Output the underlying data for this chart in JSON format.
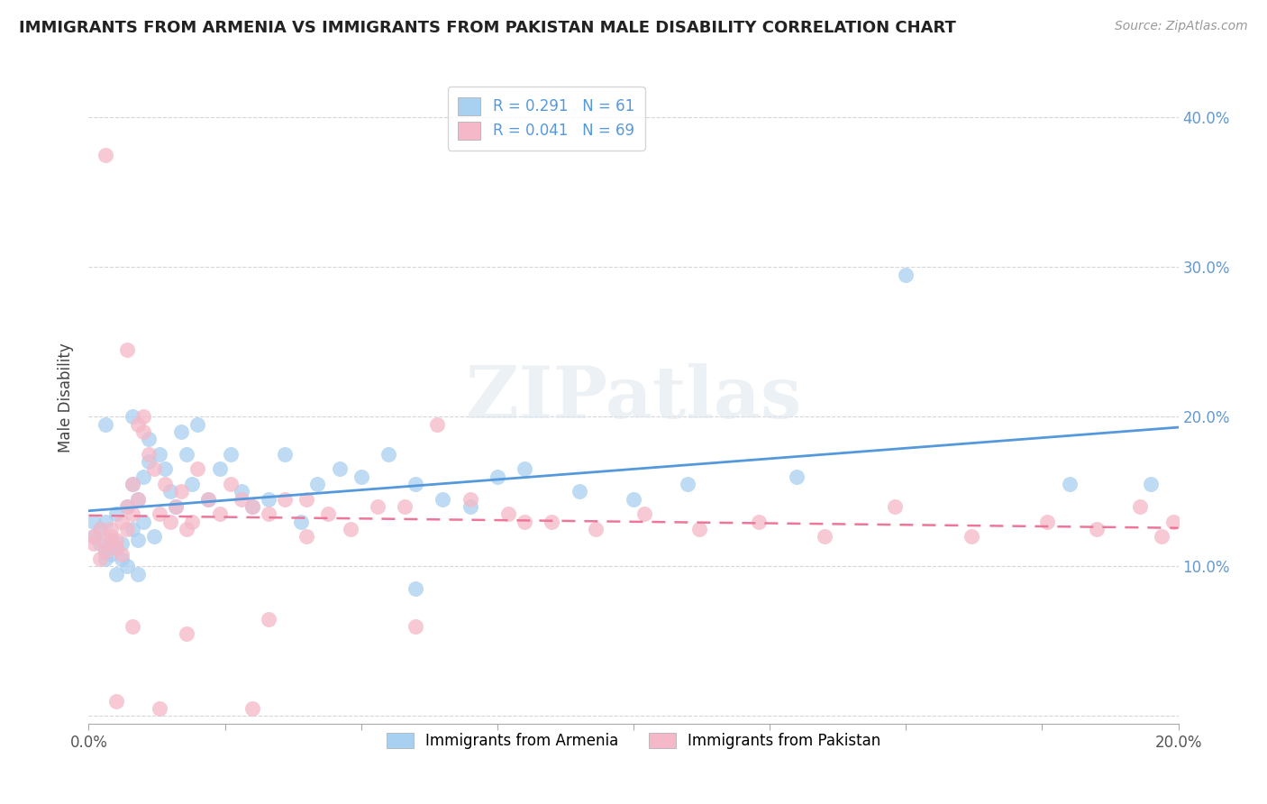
{
  "title": "IMMIGRANTS FROM ARMENIA VS IMMIGRANTS FROM PAKISTAN MALE DISABILITY CORRELATION CHART",
  "source": "Source: ZipAtlas.com",
  "ylabel": "Male Disability",
  "legend_label1": "Immigrants from Armenia",
  "legend_label2": "Immigrants from Pakistan",
  "R1": 0.291,
  "N1": 61,
  "R2": 0.041,
  "N2": 69,
  "color1": "#A8D0F0",
  "color2": "#F5B8C8",
  "line_color1": "#5599DD",
  "line_color2": "#EE7799",
  "xlim": [
    0.0,
    0.2
  ],
  "ylim": [
    -0.005,
    0.43
  ],
  "x_ticks": [
    0.0,
    0.025,
    0.05,
    0.075,
    0.1,
    0.125,
    0.15,
    0.175,
    0.2
  ],
  "x_tick_labels_show": [
    "0.0%",
    "",
    "",
    "",
    "",
    "",
    "",
    "",
    "20.0%"
  ],
  "y_ticks": [
    0.0,
    0.1,
    0.2,
    0.3,
    0.4
  ],
  "y_tick_labels_right": [
    "",
    "10.0%",
    "20.0%",
    "30.0%",
    "40.0%"
  ],
  "tick_label_color": "#6699CC",
  "watermark": "ZIPatlas",
  "armenia_x": [
    0.001,
    0.001,
    0.002,
    0.002,
    0.003,
    0.003,
    0.003,
    0.004,
    0.004,
    0.005,
    0.005,
    0.005,
    0.006,
    0.006,
    0.007,
    0.007,
    0.008,
    0.008,
    0.009,
    0.009,
    0.01,
    0.01,
    0.011,
    0.011,
    0.012,
    0.013,
    0.014,
    0.015,
    0.016,
    0.017,
    0.018,
    0.019,
    0.02,
    0.022,
    0.024,
    0.026,
    0.028,
    0.03,
    0.033,
    0.036,
    0.039,
    0.042,
    0.046,
    0.05,
    0.055,
    0.06,
    0.065,
    0.07,
    0.075,
    0.08,
    0.09,
    0.1,
    0.11,
    0.13,
    0.15,
    0.18,
    0.195,
    0.008,
    0.06,
    0.009,
    0.003
  ],
  "armenia_y": [
    0.12,
    0.13,
    0.115,
    0.125,
    0.105,
    0.11,
    0.13,
    0.108,
    0.118,
    0.112,
    0.095,
    0.135,
    0.105,
    0.115,
    0.14,
    0.1,
    0.125,
    0.155,
    0.145,
    0.118,
    0.16,
    0.13,
    0.17,
    0.185,
    0.12,
    0.175,
    0.165,
    0.15,
    0.14,
    0.19,
    0.175,
    0.155,
    0.195,
    0.145,
    0.165,
    0.175,
    0.15,
    0.14,
    0.145,
    0.175,
    0.13,
    0.155,
    0.165,
    0.16,
    0.175,
    0.155,
    0.145,
    0.14,
    0.16,
    0.165,
    0.15,
    0.145,
    0.155,
    0.16,
    0.295,
    0.155,
    0.155,
    0.2,
    0.085,
    0.095,
    0.195
  ],
  "pakistan_x": [
    0.001,
    0.001,
    0.002,
    0.002,
    0.003,
    0.003,
    0.004,
    0.004,
    0.005,
    0.005,
    0.006,
    0.006,
    0.007,
    0.007,
    0.008,
    0.008,
    0.009,
    0.009,
    0.01,
    0.01,
    0.011,
    0.012,
    0.013,
    0.014,
    0.015,
    0.016,
    0.017,
    0.018,
    0.019,
    0.02,
    0.022,
    0.024,
    0.026,
    0.028,
    0.03,
    0.033,
    0.036,
    0.04,
    0.044,
    0.048,
    0.053,
    0.058,
    0.064,
    0.07,
    0.077,
    0.085,
    0.093,
    0.102,
    0.112,
    0.123,
    0.135,
    0.148,
    0.162,
    0.176,
    0.185,
    0.193,
    0.197,
    0.199,
    0.033,
    0.08,
    0.04,
    0.007,
    0.003,
    0.008,
    0.018,
    0.03,
    0.06,
    0.013,
    0.005
  ],
  "pakistan_y": [
    0.12,
    0.115,
    0.125,
    0.105,
    0.115,
    0.11,
    0.125,
    0.12,
    0.118,
    0.112,
    0.13,
    0.108,
    0.14,
    0.125,
    0.155,
    0.135,
    0.195,
    0.145,
    0.2,
    0.19,
    0.175,
    0.165,
    0.135,
    0.155,
    0.13,
    0.14,
    0.15,
    0.125,
    0.13,
    0.165,
    0.145,
    0.135,
    0.155,
    0.145,
    0.14,
    0.135,
    0.145,
    0.145,
    0.135,
    0.125,
    0.14,
    0.14,
    0.195,
    0.145,
    0.135,
    0.13,
    0.125,
    0.135,
    0.125,
    0.13,
    0.12,
    0.14,
    0.12,
    0.13,
    0.125,
    0.14,
    0.12,
    0.13,
    0.065,
    0.13,
    0.12,
    0.245,
    0.375,
    0.06,
    0.055,
    0.005,
    0.06,
    0.005,
    0.01
  ]
}
